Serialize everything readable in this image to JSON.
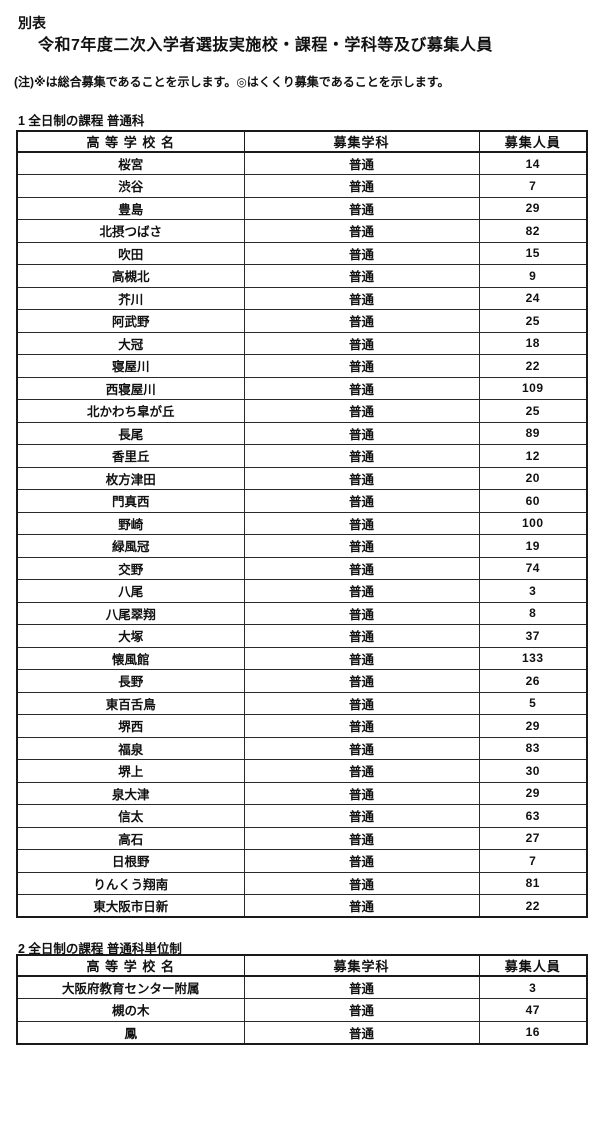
{
  "page": {
    "label": "別表",
    "title": "令和7年度二次入学者選抜実施校・課程・学科等及び募集人員",
    "note": "(注)※は総合募集であることを示します。◎はくくり募集であることを示します。"
  },
  "tables": [
    {
      "section": "1 全日制の課程 普通科",
      "headers": [
        "高 等 学 校 名",
        "募集学科",
        "募集人員"
      ],
      "rows": [
        [
          "桜宮",
          "普通",
          "14"
        ],
        [
          "渋谷",
          "普通",
          "7"
        ],
        [
          "豊島",
          "普通",
          "29"
        ],
        [
          "北摂つばさ",
          "普通",
          "82"
        ],
        [
          "吹田",
          "普通",
          "15"
        ],
        [
          "高槻北",
          "普通",
          "9"
        ],
        [
          "芥川",
          "普通",
          "24"
        ],
        [
          "阿武野",
          "普通",
          "25"
        ],
        [
          "大冠",
          "普通",
          "18"
        ],
        [
          "寝屋川",
          "普通",
          "22"
        ],
        [
          "西寝屋川",
          "普通",
          "109"
        ],
        [
          "北かわち皐が丘",
          "普通",
          "25"
        ],
        [
          "長尾",
          "普通",
          "89"
        ],
        [
          "香里丘",
          "普通",
          "12"
        ],
        [
          "枚方津田",
          "普通",
          "20"
        ],
        [
          "門真西",
          "普通",
          "60"
        ],
        [
          "野崎",
          "普通",
          "100"
        ],
        [
          "緑風冠",
          "普通",
          "19"
        ],
        [
          "交野",
          "普通",
          "74"
        ],
        [
          "八尾",
          "普通",
          "3"
        ],
        [
          "八尾翠翔",
          "普通",
          "8"
        ],
        [
          "大塚",
          "普通",
          "37"
        ],
        [
          "懐風館",
          "普通",
          "133"
        ],
        [
          "長野",
          "普通",
          "26"
        ],
        [
          "東百舌鳥",
          "普通",
          "5"
        ],
        [
          "堺西",
          "普通",
          "29"
        ],
        [
          "福泉",
          "普通",
          "83"
        ],
        [
          "堺上",
          "普通",
          "30"
        ],
        [
          "泉大津",
          "普通",
          "29"
        ],
        [
          "信太",
          "普通",
          "63"
        ],
        [
          "高石",
          "普通",
          "27"
        ],
        [
          "日根野",
          "普通",
          "7"
        ],
        [
          "りんくう翔南",
          "普通",
          "81"
        ],
        [
          "東大阪市日新",
          "普通",
          "22"
        ]
      ]
    },
    {
      "section": "2 全日制の課程 普通科単位制",
      "headers": [
        "高 等 学 校 名",
        "募集学科",
        "募集人員"
      ],
      "rows": [
        [
          "大阪府教育センター附属",
          "普通",
          "3"
        ],
        [
          "槻の木",
          "普通",
          "47"
        ],
        [
          "鳳",
          "普通",
          "16"
        ]
      ]
    }
  ]
}
